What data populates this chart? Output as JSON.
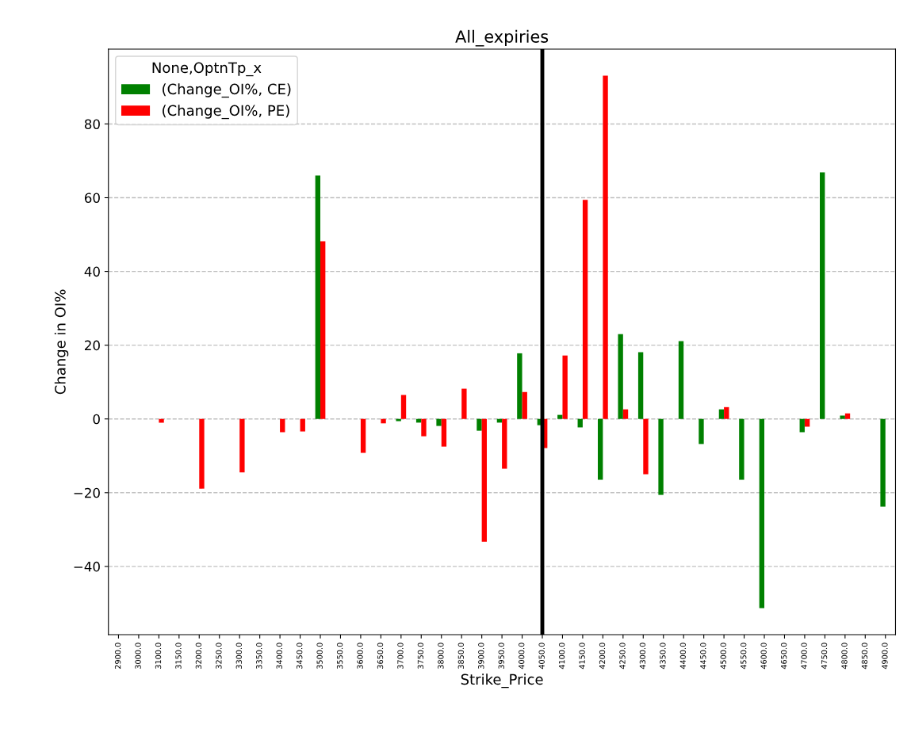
{
  "chart_data": {
    "type": "bar",
    "title": "All_expiries",
    "xlabel": "Strike_Price",
    "ylabel": "Change in OI%",
    "legend_title": "None,OptnTp_x",
    "categories": [
      "2900.0",
      "3000.0",
      "3100.0",
      "3150.0",
      "3200.0",
      "3250.0",
      "3300.0",
      "3350.0",
      "3400.0",
      "3450.0",
      "3500.0",
      "3550.0",
      "3600.0",
      "3650.0",
      "3700.0",
      "3750.0",
      "3800.0",
      "3850.0",
      "3900.0",
      "3950.0",
      "4000.0",
      "4050.0",
      "4100.0",
      "4150.0",
      "4200.0",
      "4250.0",
      "4300.0",
      "4350.0",
      "4400.0",
      "4450.0",
      "4500.0",
      "4550.0",
      "4600.0",
      "4650.0",
      "4700.0",
      "4750.0",
      "4800.0",
      "4850.0",
      "4900.0"
    ],
    "series": [
      {
        "name": "(Change_OI%, CE)",
        "color": "#008000",
        "values": [
          null,
          null,
          null,
          null,
          null,
          null,
          null,
          null,
          null,
          null,
          66.0,
          null,
          null,
          null,
          -0.6,
          -1.0,
          -1.9,
          null,
          -3.2,
          -1.0,
          17.8,
          -1.7,
          1.1,
          -2.3,
          -16.5,
          23.0,
          18.1,
          -20.6,
          21.1,
          -6.8,
          2.6,
          -16.5,
          -51.3,
          null,
          -3.6,
          66.9,
          0.9,
          null,
          -23.8
        ]
      },
      {
        "name": "(Change_OI%, PE)",
        "color": "#ff0000",
        "values": [
          null,
          null,
          -1.0,
          null,
          -18.9,
          null,
          -14.5,
          null,
          -3.6,
          -3.4,
          48.2,
          null,
          -9.2,
          -1.2,
          6.5,
          -4.7,
          -7.5,
          8.2,
          -33.3,
          -13.5,
          7.3,
          -7.9,
          17.2,
          59.4,
          93.1,
          2.6,
          -15.0,
          null,
          null,
          null,
          3.2,
          null,
          null,
          null,
          -2.1,
          null,
          1.5,
          null,
          null
        ]
      }
    ],
    "ylim": [
      -58.5,
      100.3
    ],
    "yticks": [
      -40,
      -20,
      0,
      20,
      40,
      60,
      80
    ],
    "grid": "y",
    "legend": "top left",
    "ref_lines": [
      {
        "axis": "x",
        "value": "4050.0",
        "color": "#000000",
        "line_style": "solid"
      }
    ]
  }
}
